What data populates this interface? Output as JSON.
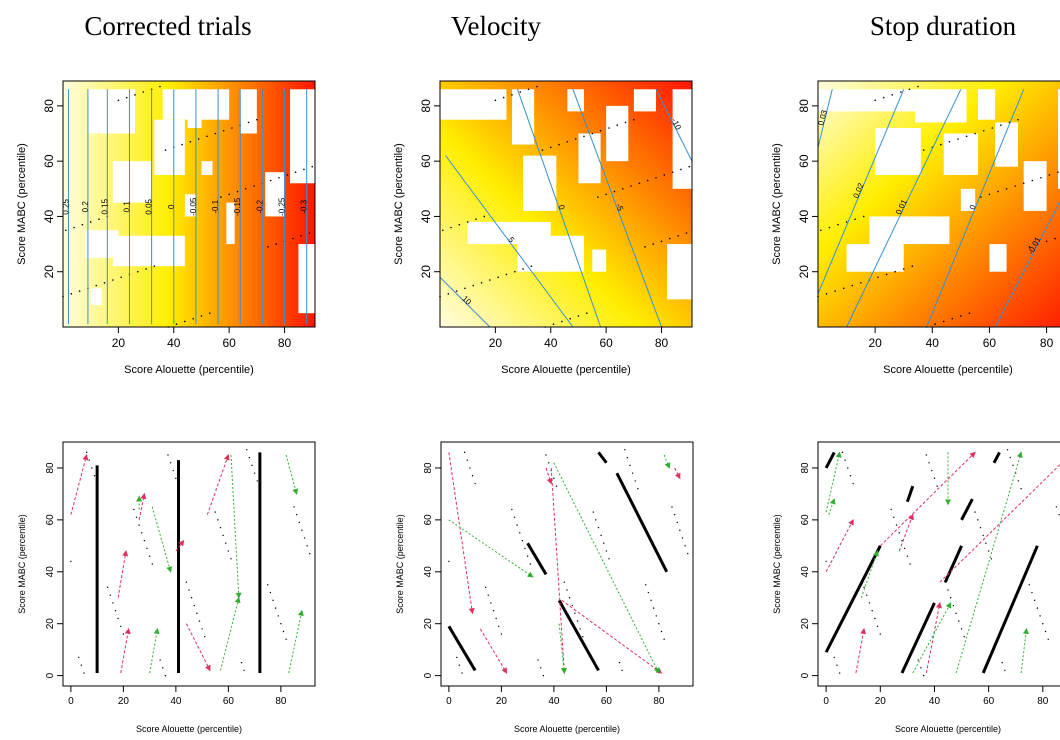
{
  "figure": {
    "column_titles": [
      "Corrected trials",
      "Velocity",
      "Stop duration"
    ]
  },
  "colors": {
    "heat_low": "#fffde0",
    "heat_mid": "#ffee00",
    "heat_high": "#ff1500",
    "contour": "#3a8fd0",
    "point": "#000000",
    "series_red": "#e03060",
    "series_green": "#30b030",
    "series_black": "#000000"
  },
  "chart_data": [
    {
      "type": "heatmap",
      "panel": "top-left",
      "title": "Corrected trials",
      "xlabel": "Score Alouette (percentile)",
      "ylabel": "Score MABC (percentile)",
      "xlim": [
        0,
        91
      ],
      "ylim": [
        0,
        89
      ],
      "xticks": [
        20,
        40,
        60,
        80
      ],
      "yticks": [
        20,
        40,
        60,
        80
      ],
      "gradient": "vertical",
      "contour_labels": [
        "0.25",
        "0.2",
        "0.15",
        "0.1",
        "0.05",
        "0",
        "-0.05",
        "-0.1",
        "-0.15",
        "-0.2",
        "-0.25",
        "-0.3"
      ],
      "contours": [
        {
          "label": "0.25",
          "from": [
            2,
            1
          ],
          "to": [
            2,
            86
          ]
        },
        {
          "label": "0.2",
          "from": [
            9,
            1
          ],
          "to": [
            9,
            86
          ]
        },
        {
          "label": "0.15",
          "from": [
            16,
            1
          ],
          "to": [
            16,
            86
          ]
        },
        {
          "label": "0.1",
          "from": [
            24,
            1
          ],
          "to": [
            24,
            86
          ]
        },
        {
          "label": "0.05",
          "from": [
            32,
            1
          ],
          "to": [
            32,
            86
          ]
        },
        {
          "label": "0",
          "from": [
            40,
            1
          ],
          "to": [
            40,
            86
          ]
        },
        {
          "label": "-0.05",
          "from": [
            48,
            1
          ],
          "to": [
            48,
            86
          ]
        },
        {
          "label": "-0.1",
          "from": [
            56,
            1
          ],
          "to": [
            56,
            86
          ]
        },
        {
          "label": "-0.15",
          "from": [
            64,
            1
          ],
          "to": [
            64,
            86
          ]
        },
        {
          "label": "-0.2",
          "from": [
            72,
            1
          ],
          "to": [
            72,
            86
          ]
        },
        {
          "label": "-0.25",
          "from": [
            80,
            1
          ],
          "to": [
            80,
            86
          ]
        },
        {
          "label": "-0.3",
          "from": [
            88,
            1
          ],
          "to": [
            88,
            86
          ]
        }
      ]
    },
    {
      "type": "heatmap",
      "panel": "top-middle",
      "title": "Velocity",
      "xlabel": "Score Alouette (percentile)",
      "ylabel": "Score MABC (percentile)",
      "xlim": [
        0,
        91
      ],
      "ylim": [
        0,
        89
      ],
      "xticks": [
        20,
        40,
        60,
        80
      ],
      "yticks": [
        20,
        40,
        60,
        80
      ],
      "gradient": "diagonal-down",
      "contour_labels": [
        "10",
        "5",
        "0",
        "-5",
        "-10"
      ],
      "contours": [
        {
          "label": "10",
          "from": [
            0,
            18
          ],
          "to": [
            18,
            0
          ]
        },
        {
          "label": "5",
          "from": [
            2,
            62
          ],
          "to": [
            48,
            0
          ]
        },
        {
          "label": "0",
          "from": [
            28,
            86
          ],
          "to": [
            58,
            0
          ]
        },
        {
          "label": "-5",
          "from": [
            48,
            86
          ],
          "to": [
            80,
            0
          ]
        },
        {
          "label": "-10",
          "from": [
            78,
            86
          ],
          "to": [
            91,
            60
          ]
        }
      ]
    },
    {
      "type": "heatmap",
      "panel": "top-right",
      "title": "Stop duration",
      "xlabel": "Score Alouette (percentile)",
      "ylabel": "Score MABC (percentile)",
      "xlim": [
        0,
        91
      ],
      "ylim": [
        0,
        89
      ],
      "xticks": [
        20,
        40,
        60,
        80
      ],
      "yticks": [
        20,
        40,
        60,
        80
      ],
      "gradient": "diagonal-up",
      "contour_labels": [
        "0.03",
        "0.02",
        "0.01",
        "0",
        "-0.01"
      ],
      "contours": [
        {
          "label": "0.03",
          "from": [
            0,
            65
          ],
          "to": [
            5,
            86
          ]
        },
        {
          "label": "0.02",
          "from": [
            0,
            12
          ],
          "to": [
            30,
            86
          ]
        },
        {
          "label": "0.01",
          "from": [
            10,
            0
          ],
          "to": [
            50,
            86
          ]
        },
        {
          "label": "0",
          "from": [
            38,
            0
          ],
          "to": [
            72,
            86
          ]
        },
        {
          "label": "-0.01",
          "from": [
            62,
            0
          ],
          "to": [
            91,
            58
          ]
        }
      ]
    },
    {
      "type": "scatter",
      "panel": "bottom-left",
      "xlabel": "Score Alouette (percentile)",
      "ylabel": "Score MABC (percentile)",
      "xlim": [
        -3,
        93
      ],
      "ylim": [
        -4,
        90
      ],
      "xticks": [
        0,
        20,
        40,
        60,
        80
      ],
      "yticks": [
        0,
        20,
        40,
        60,
        80
      ],
      "black_segments": [
        [
          [
            10,
            1
          ],
          [
            10,
            81
          ]
        ],
        [
          [
            41,
            1
          ],
          [
            41,
            83
          ]
        ],
        [
          [
            72,
            1
          ],
          [
            72,
            86
          ]
        ]
      ],
      "red_arrows": [
        [
          [
            0,
            62
          ],
          [
            6,
            85
          ]
        ],
        [
          [
            18,
            30
          ],
          [
            21,
            48
          ]
        ],
        [
          [
            19,
            1
          ],
          [
            22,
            18
          ]
        ],
        [
          [
            26,
            60
          ],
          [
            28,
            70
          ]
        ],
        [
          [
            40,
            48
          ],
          [
            43,
            52
          ]
        ],
        [
          [
            44,
            20
          ],
          [
            53,
            2
          ]
        ],
        [
          [
            52,
            62
          ],
          [
            60,
            85
          ]
        ]
      ],
      "green_arrows": [
        [
          [
            57,
            2
          ],
          [
            64,
            30
          ]
        ],
        [
          [
            61,
            85
          ],
          [
            64,
            30
          ]
        ],
        [
          [
            31,
            65
          ],
          [
            38,
            40
          ]
        ],
        [
          [
            26,
            64
          ],
          [
            26,
            69
          ]
        ],
        [
          [
            83,
            1
          ],
          [
            88,
            25
          ]
        ],
        [
          [
            82,
            85
          ],
          [
            86,
            70
          ]
        ],
        [
          [
            30,
            1
          ],
          [
            33,
            18
          ]
        ]
      ]
    },
    {
      "type": "scatter",
      "panel": "bottom-middle",
      "xlabel": "Score Alouette (percentile)",
      "ylabel": "Score MABC (percentile)",
      "xlim": [
        -3,
        93
      ],
      "ylim": [
        -4,
        90
      ],
      "xticks": [
        0,
        20,
        40,
        60,
        80
      ],
      "yticks": [
        0,
        20,
        40,
        60,
        80
      ],
      "black_segments": [
        [
          [
            0,
            19
          ],
          [
            10,
            2
          ]
        ],
        [
          [
            30,
            51
          ],
          [
            37,
            39
          ]
        ],
        [
          [
            42,
            29
          ],
          [
            57,
            2
          ]
        ],
        [
          [
            57,
            86
          ],
          [
            60,
            82
          ]
        ],
        [
          [
            64,
            78
          ],
          [
            83,
            40
          ]
        ]
      ],
      "red_arrows": [
        [
          [
            0,
            86
          ],
          [
            9,
            24
          ]
        ],
        [
          [
            12,
            18
          ],
          [
            22,
            1
          ]
        ],
        [
          [
            39,
            80
          ],
          [
            44,
            1
          ]
        ],
        [
          [
            43,
            29
          ],
          [
            81,
            1
          ]
        ],
        [
          [
            37,
            80
          ],
          [
            39,
            74
          ]
        ],
        [
          [
            86,
            80
          ],
          [
            88,
            76
          ]
        ]
      ],
      "green_arrows": [
        [
          [
            0,
            60
          ],
          [
            32,
            38
          ]
        ],
        [
          [
            40,
            82
          ],
          [
            80,
            1
          ]
        ],
        [
          [
            42,
            20
          ],
          [
            44,
            1
          ]
        ],
        [
          [
            82,
            85
          ],
          [
            84,
            80
          ]
        ]
      ]
    },
    {
      "type": "scatter",
      "panel": "bottom-right",
      "xlabel": "Score Alouette (percentile)",
      "ylabel": "Score MABC (percentile)",
      "xlim": [
        -3,
        93
      ],
      "ylim": [
        -4,
        90
      ],
      "xticks": [
        0,
        20,
        40,
        60,
        80
      ],
      "yticks": [
        0,
        20,
        40,
        60,
        80
      ],
      "black_segments": [
        [
          [
            0,
            80
          ],
          [
            3,
            86
          ]
        ],
        [
          [
            0,
            9
          ],
          [
            20,
            50
          ]
        ],
        [
          [
            28,
            1
          ],
          [
            40,
            28
          ]
        ],
        [
          [
            30,
            67
          ],
          [
            32,
            73
          ]
        ],
        [
          [
            44,
            36
          ],
          [
            50,
            50
          ]
        ],
        [
          [
            50,
            60
          ],
          [
            54,
            68
          ]
        ],
        [
          [
            62,
            82
          ],
          [
            64,
            86
          ]
        ],
        [
          [
            58,
            1
          ],
          [
            78,
            50
          ]
        ]
      ],
      "red_arrows": [
        [
          [
            0,
            40
          ],
          [
            10,
            60
          ]
        ],
        [
          [
            20,
            50
          ],
          [
            55,
            86
          ]
        ],
        [
          [
            42,
            36
          ],
          [
            91,
            86
          ]
        ],
        [
          [
            11,
            1
          ],
          [
            14,
            18
          ]
        ],
        [
          [
            37,
            1
          ],
          [
            42,
            28
          ]
        ],
        [
          [
            27,
            48
          ],
          [
            32,
            62
          ]
        ]
      ],
      "green_arrows": [
        [
          [
            0,
            63
          ],
          [
            5,
            86
          ]
        ],
        [
          [
            32,
            1
          ],
          [
            46,
            28
          ]
        ],
        [
          [
            45,
            86
          ],
          [
            45,
            66
          ]
        ],
        [
          [
            48,
            1
          ],
          [
            72,
            86
          ]
        ],
        [
          [
            13,
            30
          ],
          [
            19,
            48
          ]
        ],
        [
          [
            72,
            1
          ],
          [
            74,
            18
          ]
        ],
        [
          [
            1,
            62
          ],
          [
            3,
            68
          ]
        ]
      ]
    }
  ]
}
